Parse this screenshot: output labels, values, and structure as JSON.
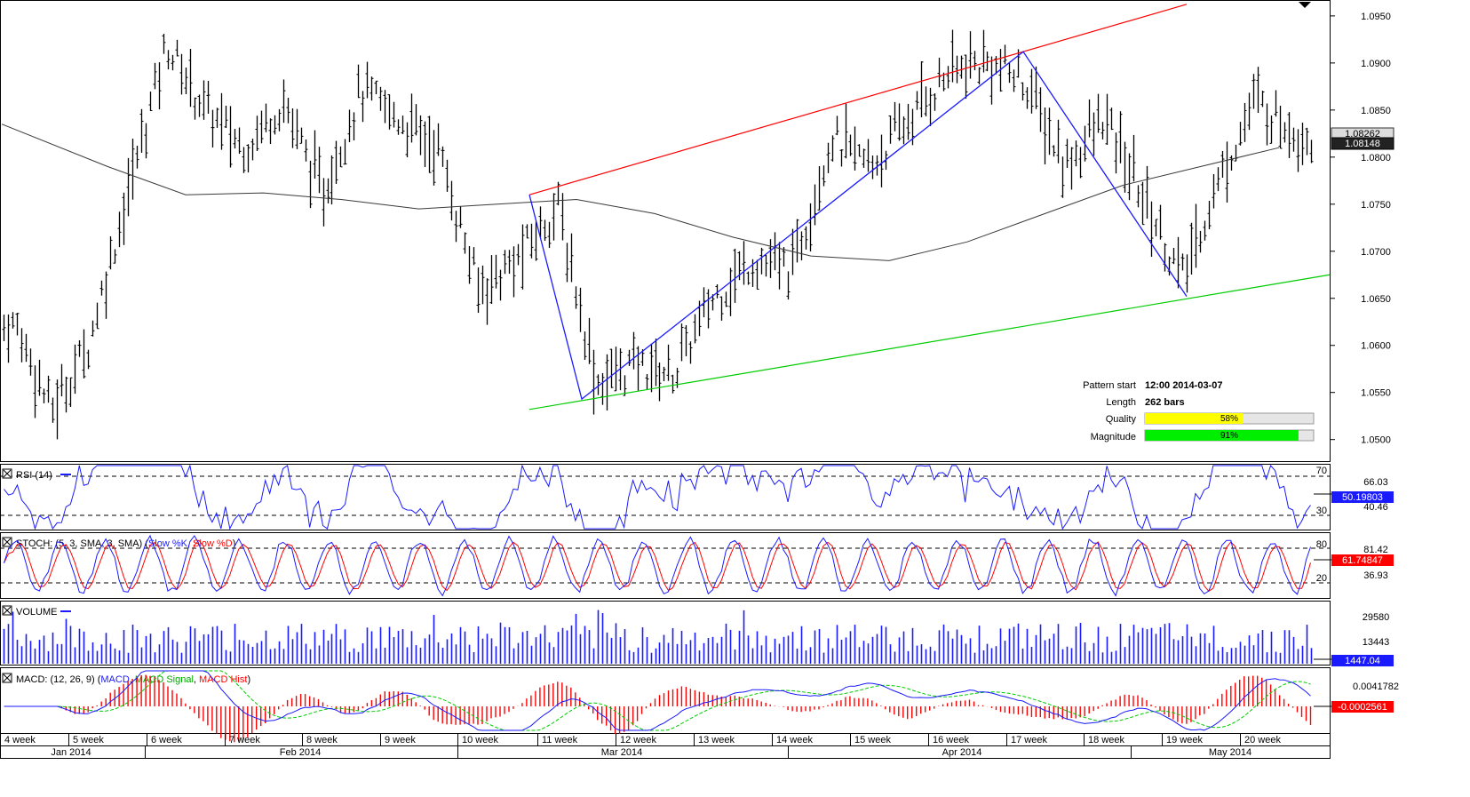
{
  "colors": {
    "bars": "#000000",
    "ma": "#3a3a3a",
    "upper_line": "#ff0000",
    "lower_line": "#00cc00",
    "zigzag": "#1a1aff",
    "rsi": "#1a1aff",
    "stoch_k": "#1a1aff",
    "stoch_d": "#ff0000",
    "volume": "#1a1aff",
    "macd": "#1a1aff",
    "macd_signal": "#00cc00",
    "macd_hist": "#ff0000",
    "quality_fill": "#ffff00",
    "magnitude_fill": "#00ee00"
  },
  "price_axis": {
    "ticks": [
      "1.0950",
      "1.0900",
      "1.0850",
      "1.0800",
      "1.0750",
      "1.0700",
      "1.0650",
      "1.0600",
      "1.0550",
      "1.0500"
    ],
    "tick_values": [
      1.095,
      1.09,
      1.085,
      1.08,
      1.075,
      1.07,
      1.065,
      1.06,
      1.055,
      1.05
    ],
    "range": [
      1.0478,
      1.0965
    ],
    "label_high": "1.08262",
    "label_low": "1.08148"
  },
  "pattern_info": {
    "start_label": "Pattern start",
    "start_value": "12:00 2014-03-07",
    "length_label": "Length",
    "length_value": "262 bars",
    "quality_label": "Quality",
    "quality_text": "58%",
    "quality_fraction": 0.58,
    "magnitude_label": "Magnitude",
    "magnitude_text": "91%",
    "magnitude_fraction": 0.91
  },
  "rsi": {
    "title": "RSI (14)",
    "levels": [
      "70",
      "66.03",
      "30",
      "40.46"
    ],
    "current": "50.19803"
  },
  "stoch": {
    "title_prefix": "STOCH: (5, 3, SMA, 3, SMA)",
    "k_label": "Slow %K",
    "d_label": "Slow %D",
    "levels": [
      "80",
      "81.42",
      "20",
      "36.93"
    ],
    "current": "61.74847"
  },
  "volume": {
    "title": "VOLUME",
    "ticks": [
      "29580",
      "13443"
    ],
    "current": "1447.04"
  },
  "macd": {
    "title_prefix": "MACD: (12, 26, 9)",
    "macd_label": "MACD",
    "signal_label": "MACD Signal",
    "hist_label": "MACD Hist",
    "ticks": [
      "0.0041782"
    ],
    "current": "-0.0002561"
  },
  "time_axis": {
    "weeks": [
      "4 week",
      "5 week",
      "6 week",
      "7 week",
      "8 week",
      "9 week",
      "10 week",
      "11 week",
      "12 week",
      "13 week",
      "14 week",
      "15 week",
      "16 week",
      "17 week",
      "18 week",
      "19 week",
      "20 week"
    ],
    "months": [
      "Jan 2014",
      "Feb 2014",
      "Mar 2014",
      "Apr 2014",
      "May 2014"
    ]
  },
  "chart_data": {
    "type": "line",
    "title": "",
    "series": [
      {
        "name": "",
        "description_values": []
      }
    ],
    "x": [
      "4 week",
      "5 week",
      "6 week",
      "7 week",
      "8 week",
      "9 week",
      "10 week",
      "11 week",
      "12 week",
      "13 week",
      "14 week",
      "15 week",
      "16 week",
      "17 week",
      "18 week",
      "19 week",
      "20 week"
    ],
    "price_path": [
      {
        "week": "4 week",
        "value": 1.062
      },
      {
        "week": "4 week",
        "value": 1.053
      },
      {
        "week": "5 week",
        "value": 1.06
      },
      {
        "week": "5 week",
        "value": 1.076
      },
      {
        "week": "6 week",
        "value": 1.092
      },
      {
        "week": "6 week",
        "value": 1.085
      },
      {
        "week": "7 week",
        "value": 1.081
      },
      {
        "week": "7 week",
        "value": 1.086
      },
      {
        "week": "8 week",
        "value": 1.076
      },
      {
        "week": "8 week",
        "value": 1.087
      },
      {
        "week": "9 week",
        "value": 1.084
      },
      {
        "week": "9 week",
        "value": 1.081
      },
      {
        "week": "10 week",
        "value": 1.066
      },
      {
        "week": "10 week",
        "value": 1.069
      },
      {
        "week": "11 week",
        "value": 1.075
      },
      {
        "week": "11 week",
        "value": 1.056
      },
      {
        "week": "12 week",
        "value": 1.058
      },
      {
        "week": "12 week",
        "value": 1.057
      },
      {
        "week": "13 week",
        "value": 1.065
      },
      {
        "week": "13 week",
        "value": 1.069
      },
      {
        "week": "14 week",
        "value": 1.068
      },
      {
        "week": "14 week",
        "value": 1.082
      },
      {
        "week": "15 week",
        "value": 1.079
      },
      {
        "week": "15 week",
        "value": 1.084
      },
      {
        "week": "16 week",
        "value": 1.089
      },
      {
        "week": "16 week",
        "value": 1.09
      },
      {
        "week": "17 week",
        "value": 1.088
      },
      {
        "week": "17 week",
        "value": 1.079
      },
      {
        "week": "18 week",
        "value": 1.084
      },
      {
        "week": "18 week",
        "value": 1.076
      },
      {
        "week": "19 week",
        "value": 1.067
      },
      {
        "week": "19 week",
        "value": 1.078
      },
      {
        "week": "20 week",
        "value": 1.086
      },
      {
        "week": "20 week",
        "value": 1.084
      },
      {
        "week": "20 week",
        "value": 1.082
      }
    ],
    "ma_path": [
      1.0835,
      1.079,
      1.076,
      1.0762,
      1.0755,
      1.0745,
      1.075,
      1.0755,
      1.074,
      1.0715,
      1.0695,
      1.069,
      1.071,
      1.074,
      1.077,
      1.079,
      1.081
    ],
    "pattern": {
      "upper_line": [
        {
          "point": "11 week start",
          "value": 1.076
        },
        {
          "point": "17 week",
          "value": 1.0912
        }
      ],
      "lower_line": [
        {
          "point": "11 week start",
          "value": 1.0532
        },
        {
          "point": "right edge",
          "value": 1.0675
        }
      ],
      "zigzag": [
        {
          "point": "11 week",
          "value": 1.076
        },
        {
          "point": "11 week low",
          "value": 1.0543
        },
        {
          "point": "17 week high",
          "value": 1.0912
        },
        {
          "point": "19 week low",
          "value": 1.0652
        }
      ]
    }
  }
}
